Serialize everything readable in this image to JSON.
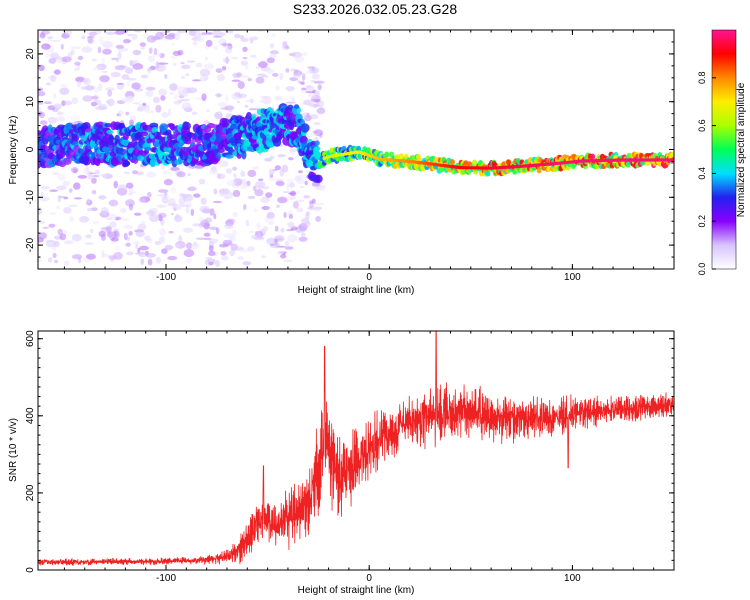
{
  "title": "S233.2026.032.05.23.G28",
  "chart_data": [
    {
      "type": "heatmap",
      "name": "spectrogram",
      "xlabel": "Height of straight line (km)",
      "ylabel": "Frequency (Hz)",
      "xlim": [
        -163,
        150
      ],
      "ylim": [
        -25,
        25
      ],
      "xticks": [
        -100,
        0,
        100
      ],
      "yticks": [
        -20,
        -10,
        0,
        10,
        20
      ],
      "colorbar": {
        "label": "Normalized spectral amplitude",
        "range": [
          0,
          1
        ],
        "ticks": [
          "0.0",
          "0.2",
          "0.4",
          "0.6",
          "0.8"
        ],
        "colors": [
          "#ffffff",
          "#d8c4ff",
          "#8800ff",
          "#2222ee",
          "#00e0ff",
          "#00ff55",
          "#aaff00",
          "#ffee00",
          "#ff8800",
          "#ff0000",
          "#ff1493"
        ]
      },
      "ridge": [
        {
          "x": -160,
          "f": 0.5,
          "a": 0.45
        },
        {
          "x": -140,
          "f": 1.5,
          "a": 0.5
        },
        {
          "x": -120,
          "f": 1.0,
          "a": 0.5
        },
        {
          "x": -100,
          "f": 1.2,
          "a": 0.5
        },
        {
          "x": -80,
          "f": 1.0,
          "a": 0.45
        },
        {
          "x": -60,
          "f": 3.0,
          "a": 0.55
        },
        {
          "x": -45,
          "f": 5.0,
          "a": 0.55
        },
        {
          "x": -35,
          "f": 5.0,
          "a": 0.5
        },
        {
          "x": -28,
          "f": -3.0,
          "a": 0.55
        },
        {
          "x": -20,
          "f": -1.5,
          "a": 0.6
        },
        {
          "x": -5,
          "f": -0.5,
          "a": 0.65
        },
        {
          "x": 5,
          "f": -2.0,
          "a": 0.7
        },
        {
          "x": 20,
          "f": -2.5,
          "a": 0.75
        },
        {
          "x": 30,
          "f": -3.0,
          "a": 0.8
        },
        {
          "x": 45,
          "f": -3.8,
          "a": 0.85
        },
        {
          "x": 60,
          "f": -3.9,
          "a": 0.88
        },
        {
          "x": 75,
          "f": -3.5,
          "a": 0.9
        },
        {
          "x": 90,
          "f": -3.0,
          "a": 0.92
        },
        {
          "x": 105,
          "f": -2.4,
          "a": 0.95
        },
        {
          "x": 125,
          "f": -2.2,
          "a": 0.96
        },
        {
          "x": 150,
          "f": -2.2,
          "a": 0.96
        }
      ]
    },
    {
      "type": "line",
      "name": "snr",
      "xlabel": "Height of straight line (km)",
      "ylabel": "SNR (10 * v/v)",
      "xlim": [
        -163,
        150
      ],
      "ylim": [
        0,
        620
      ],
      "xticks": [
        -100,
        0,
        100
      ],
      "yticks": [
        0,
        200,
        400,
        600
      ],
      "color": "#ee2222",
      "envelope": {
        "x": [
          -163,
          -110,
          -80,
          -70,
          -62,
          -55,
          -50,
          -45,
          -40,
          -35,
          -30,
          -25,
          -22,
          -20,
          -15,
          -10,
          -5,
          0,
          10,
          20,
          30,
          40,
          50,
          60,
          70,
          80,
          90,
          100,
          110,
          120,
          130,
          140,
          150
        ],
        "mean": [
          20,
          22,
          25,
          35,
          60,
          120,
          140,
          110,
          140,
          145,
          170,
          250,
          320,
          300,
          240,
          260,
          290,
          310,
          360,
          385,
          400,
          410,
          405,
          400,
          395,
          395,
          395,
          405,
          410,
          415,
          420,
          425,
          430
        ],
        "noise": [
          8,
          8,
          10,
          15,
          40,
          60,
          70,
          50,
          70,
          70,
          80,
          120,
          150,
          120,
          90,
          90,
          80,
          80,
          60,
          60,
          70,
          70,
          60,
          60,
          55,
          50,
          45,
          40,
          35,
          30,
          30,
          30,
          30
        ]
      },
      "peaks": [
        {
          "x": -52,
          "y": 270
        },
        {
          "x": -22,
          "y": 580
        },
        {
          "x": 33,
          "y": 620
        },
        {
          "x": 98,
          "y": 265
        }
      ]
    }
  ]
}
